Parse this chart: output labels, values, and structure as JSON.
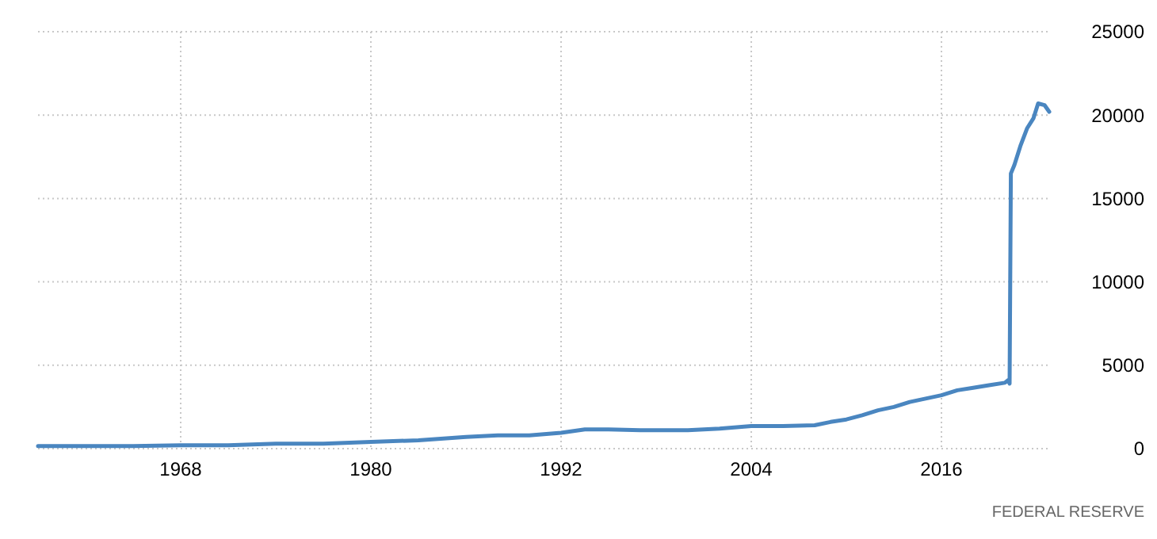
{
  "chart_data": {
    "type": "line",
    "x": [
      1959,
      1962,
      1965,
      1968,
      1971,
      1974,
      1977,
      1980,
      1983,
      1986,
      1988,
      1990,
      1992,
      1993.5,
      1995,
      1997,
      2000,
      2002,
      2004,
      2006,
      2008,
      2009,
      2010,
      2011,
      2012,
      2013,
      2014,
      2015,
      2016,
      2017,
      2018,
      2019,
      2020,
      2020.2,
      2020.3,
      2020.38,
      2020.6,
      2021,
      2021.4,
      2021.8,
      2022.1,
      2022.5,
      2022.8
    ],
    "values": [
      150,
      150,
      150,
      200,
      200,
      300,
      300,
      400,
      500,
      700,
      800,
      800,
      950,
      1150,
      1150,
      1100,
      1100,
      1200,
      1350,
      1350,
      1400,
      1600,
      1750,
      2000,
      2300,
      2500,
      2800,
      3000,
      3200,
      3500,
      3650,
      3800,
      3950,
      4100,
      3900,
      16500,
      17000,
      18200,
      19200,
      19800,
      20700,
      20600,
      20200
    ],
    "color": "#4a86c0",
    "xlim": [
      1959,
      2022.8
    ],
    "xticks": [
      1968,
      1980,
      1992,
      2004,
      2016
    ],
    "ylim": [
      0,
      25000
    ],
    "yticks": [
      0,
      5000,
      10000,
      15000,
      20000,
      25000
    ],
    "grid": true,
    "annotations": [
      "FEDERAL RESERVE"
    ]
  }
}
